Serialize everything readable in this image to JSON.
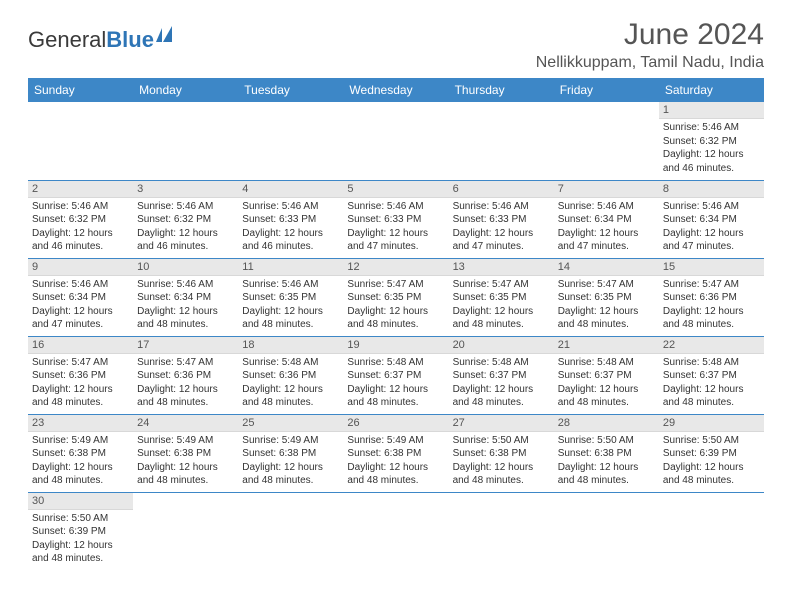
{
  "logo": {
    "text1": "General",
    "text2": "Blue"
  },
  "title": "June 2024",
  "location": "Nellikkuppam, Tamil Nadu, India",
  "colors": {
    "header_bg": "#3d87c7",
    "header_fg": "#ffffff",
    "daynum_bg": "#e8e8e8",
    "row_border": "#3d87c7",
    "title_color": "#555555",
    "logo_blue": "#2e75b6"
  },
  "weekdays": [
    "Sunday",
    "Monday",
    "Tuesday",
    "Wednesday",
    "Thursday",
    "Friday",
    "Saturday"
  ],
  "weeks": [
    [
      null,
      null,
      null,
      null,
      null,
      null,
      {
        "n": "1",
        "sr": "5:46 AM",
        "ss": "6:32 PM",
        "dl": "12 hours and 46 minutes."
      }
    ],
    [
      {
        "n": "2",
        "sr": "5:46 AM",
        "ss": "6:32 PM",
        "dl": "12 hours and 46 minutes."
      },
      {
        "n": "3",
        "sr": "5:46 AM",
        "ss": "6:32 PM",
        "dl": "12 hours and 46 minutes."
      },
      {
        "n": "4",
        "sr": "5:46 AM",
        "ss": "6:33 PM",
        "dl": "12 hours and 46 minutes."
      },
      {
        "n": "5",
        "sr": "5:46 AM",
        "ss": "6:33 PM",
        "dl": "12 hours and 47 minutes."
      },
      {
        "n": "6",
        "sr": "5:46 AM",
        "ss": "6:33 PM",
        "dl": "12 hours and 47 minutes."
      },
      {
        "n": "7",
        "sr": "5:46 AM",
        "ss": "6:34 PM",
        "dl": "12 hours and 47 minutes."
      },
      {
        "n": "8",
        "sr": "5:46 AM",
        "ss": "6:34 PM",
        "dl": "12 hours and 47 minutes."
      }
    ],
    [
      {
        "n": "9",
        "sr": "5:46 AM",
        "ss": "6:34 PM",
        "dl": "12 hours and 47 minutes."
      },
      {
        "n": "10",
        "sr": "5:46 AM",
        "ss": "6:34 PM",
        "dl": "12 hours and 48 minutes."
      },
      {
        "n": "11",
        "sr": "5:46 AM",
        "ss": "6:35 PM",
        "dl": "12 hours and 48 minutes."
      },
      {
        "n": "12",
        "sr": "5:47 AM",
        "ss": "6:35 PM",
        "dl": "12 hours and 48 minutes."
      },
      {
        "n": "13",
        "sr": "5:47 AM",
        "ss": "6:35 PM",
        "dl": "12 hours and 48 minutes."
      },
      {
        "n": "14",
        "sr": "5:47 AM",
        "ss": "6:35 PM",
        "dl": "12 hours and 48 minutes."
      },
      {
        "n": "15",
        "sr": "5:47 AM",
        "ss": "6:36 PM",
        "dl": "12 hours and 48 minutes."
      }
    ],
    [
      {
        "n": "16",
        "sr": "5:47 AM",
        "ss": "6:36 PM",
        "dl": "12 hours and 48 minutes."
      },
      {
        "n": "17",
        "sr": "5:47 AM",
        "ss": "6:36 PM",
        "dl": "12 hours and 48 minutes."
      },
      {
        "n": "18",
        "sr": "5:48 AM",
        "ss": "6:36 PM",
        "dl": "12 hours and 48 minutes."
      },
      {
        "n": "19",
        "sr": "5:48 AM",
        "ss": "6:37 PM",
        "dl": "12 hours and 48 minutes."
      },
      {
        "n": "20",
        "sr": "5:48 AM",
        "ss": "6:37 PM",
        "dl": "12 hours and 48 minutes."
      },
      {
        "n": "21",
        "sr": "5:48 AM",
        "ss": "6:37 PM",
        "dl": "12 hours and 48 minutes."
      },
      {
        "n": "22",
        "sr": "5:48 AM",
        "ss": "6:37 PM",
        "dl": "12 hours and 48 minutes."
      }
    ],
    [
      {
        "n": "23",
        "sr": "5:49 AM",
        "ss": "6:38 PM",
        "dl": "12 hours and 48 minutes."
      },
      {
        "n": "24",
        "sr": "5:49 AM",
        "ss": "6:38 PM",
        "dl": "12 hours and 48 minutes."
      },
      {
        "n": "25",
        "sr": "5:49 AM",
        "ss": "6:38 PM",
        "dl": "12 hours and 48 minutes."
      },
      {
        "n": "26",
        "sr": "5:49 AM",
        "ss": "6:38 PM",
        "dl": "12 hours and 48 minutes."
      },
      {
        "n": "27",
        "sr": "5:50 AM",
        "ss": "6:38 PM",
        "dl": "12 hours and 48 minutes."
      },
      {
        "n": "28",
        "sr": "5:50 AM",
        "ss": "6:38 PM",
        "dl": "12 hours and 48 minutes."
      },
      {
        "n": "29",
        "sr": "5:50 AM",
        "ss": "6:39 PM",
        "dl": "12 hours and 48 minutes."
      }
    ],
    [
      {
        "n": "30",
        "sr": "5:50 AM",
        "ss": "6:39 PM",
        "dl": "12 hours and 48 minutes."
      },
      null,
      null,
      null,
      null,
      null,
      null
    ]
  ],
  "labels": {
    "sunrise": "Sunrise:",
    "sunset": "Sunset:",
    "daylight": "Daylight:"
  }
}
